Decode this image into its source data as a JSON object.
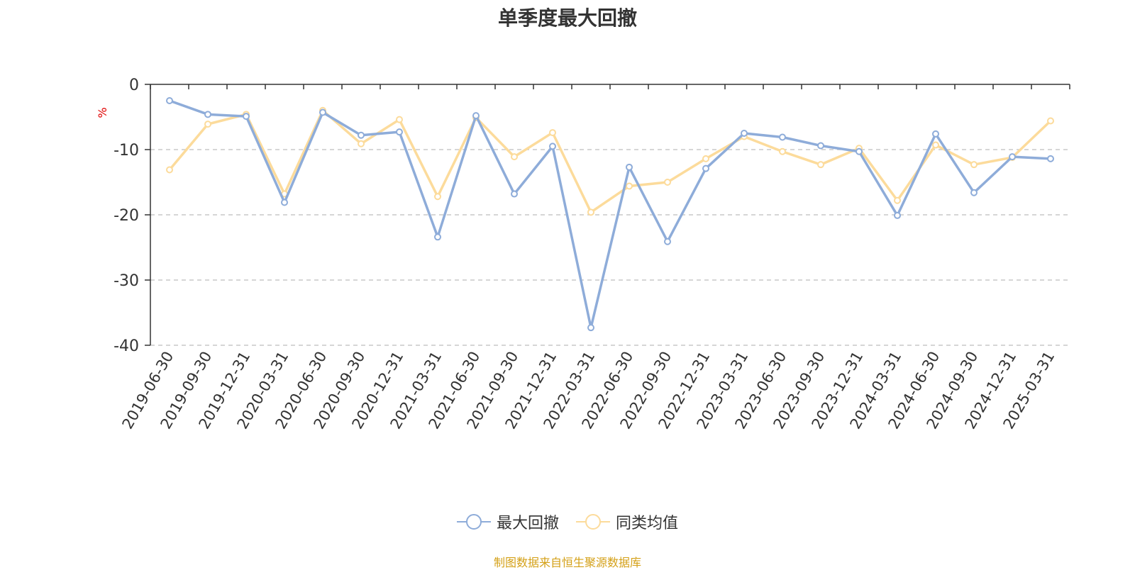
{
  "chart_data": {
    "type": "line",
    "title": "单季度最大回撤",
    "ylabel": "%",
    "ylim": [
      -40,
      0
    ],
    "yticks": [
      0,
      -10,
      -20,
      -30,
      -40
    ],
    "grid": true,
    "legend_position": "bottom",
    "categories": [
      "2019-06-30",
      "2019-09-30",
      "2019-12-31",
      "2020-03-31",
      "2020-06-30",
      "2020-09-30",
      "2020-12-31",
      "2021-03-31",
      "2021-06-30",
      "2021-09-30",
      "2021-12-31",
      "2022-03-31",
      "2022-06-30",
      "2022-09-30",
      "2022-12-31",
      "2023-03-31",
      "2023-06-30",
      "2023-09-30",
      "2023-12-31",
      "2024-03-31",
      "2024-06-30",
      "2024-09-30",
      "2024-12-31",
      "2025-03-31"
    ],
    "series": [
      {
        "name": "最大回撤",
        "color": "#8eacd9",
        "values": [
          -2.5,
          -4.6,
          -4.9,
          -18.1,
          -4.3,
          -7.8,
          -7.3,
          -23.4,
          -4.8,
          -16.8,
          -9.5,
          -37.3,
          -12.7,
          -24.1,
          -12.9,
          -7.5,
          -8.1,
          -9.4,
          -10.3,
          -20.1,
          -7.6,
          -16.6,
          -11.1,
          -11.4
        ]
      },
      {
        "name": "同类均值",
        "color": "#fcdb9b",
        "values": [
          -13.1,
          -6.1,
          -4.6,
          -16.8,
          -4.0,
          -9.1,
          -5.4,
          -17.2,
          -5.1,
          -11.1,
          -7.4,
          -19.6,
          -15.6,
          -15.0,
          -11.4,
          -8.0,
          -10.3,
          -12.3,
          -9.8,
          -17.8,
          -9.3,
          -12.3,
          -11.2,
          -5.6
        ]
      }
    ]
  },
  "source_text": "制图数据来自恒生聚源数据库",
  "source_color": "#d4a017",
  "axis_unit_color": "#e00000"
}
